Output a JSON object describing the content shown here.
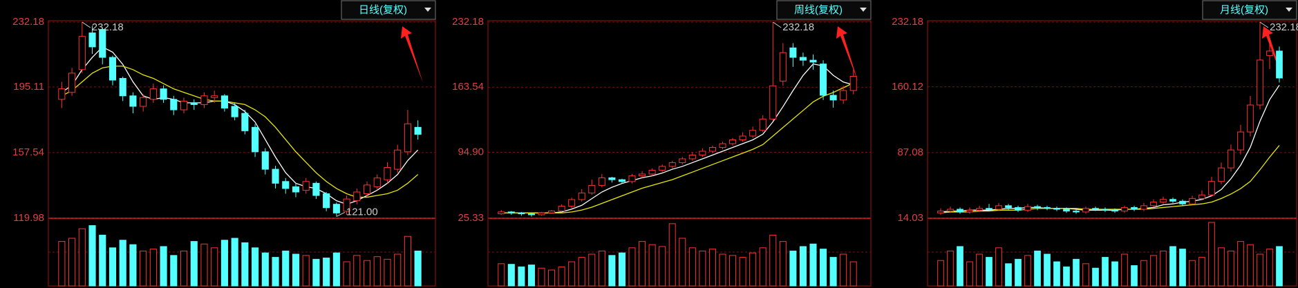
{
  "chart_data": [
    {
      "type": "candlestick",
      "title": "日线(复权)",
      "ylim": [
        119.98,
        232.18
      ],
      "yticks": [
        119.98,
        157.54,
        195.11,
        232.18
      ],
      "grid": true,
      "up_color": "#ff3232",
      "down_color": "#54ffff",
      "high_label": {
        "value": 232.18,
        "label": "232.18"
      },
      "low_label": {
        "value": 121,
        "label": "121.00"
      },
      "open": [
        188,
        192,
        205,
        226,
        228,
        212,
        200,
        190,
        184,
        188,
        194,
        188,
        182,
        186,
        185,
        189,
        190,
        184,
        180,
        172,
        158,
        148,
        141,
        138,
        136,
        140,
        134,
        128,
        124,
        130,
        134,
        138,
        142,
        148,
        158,
        172
      ],
      "high": [
        198,
        206,
        232.18,
        230,
        229,
        213,
        201,
        192,
        191,
        197,
        196,
        190,
        189,
        188,
        192,
        193,
        191,
        186,
        182,
        174,
        160,
        150,
        143,
        140,
        143,
        141,
        135,
        129,
        133,
        137,
        141,
        145,
        152,
        162,
        182,
        176
      ],
      "low": [
        183,
        190,
        203,
        214,
        208,
        196,
        187,
        180,
        181,
        186,
        186,
        179,
        180,
        182,
        183,
        186,
        181,
        176,
        168,
        155,
        145,
        137,
        134,
        132,
        134,
        131,
        124,
        121,
        122,
        128,
        132,
        136,
        140,
        146,
        156,
        165
      ],
      "close": [
        194,
        203,
        224,
        218,
        212,
        199,
        190,
        184,
        189,
        194,
        188,
        182,
        187,
        185,
        190,
        190,
        183,
        178,
        170,
        158,
        148,
        140,
        137,
        135,
        141,
        133,
        126,
        123,
        131,
        135,
        139,
        143,
        149,
        159,
        174,
        168
      ],
      "ma_lines": [
        {
          "color": "#ffffff",
          "values": [
            192,
            196,
            205,
            212,
            218,
            215,
            208,
            198,
            190,
            188,
            189,
            188,
            186,
            186,
            186,
            187,
            187,
            185,
            181,
            175,
            165,
            155,
            146,
            140,
            138,
            137,
            134,
            130,
            128,
            130,
            133,
            136,
            140,
            145,
            153,
            159
          ]
        },
        {
          "color": "#e8e800",
          "values": [
            190,
            193,
            198,
            203,
            206,
            207,
            207,
            205,
            202,
            200,
            197,
            194,
            192,
            190,
            188,
            187,
            187,
            186,
            185,
            182,
            178,
            172,
            165,
            158,
            152,
            146,
            141,
            137,
            134,
            132,
            132,
            133,
            134,
            136,
            140,
            145
          ]
        }
      ],
      "volume": {
        "ylim": [
          0,
          100
        ],
        "values": [
          70,
          75,
          90,
          95,
          80,
          60,
          72,
          65,
          55,
          58,
          62,
          48,
          55,
          70,
          66,
          60,
          72,
          75,
          68,
          60,
          52,
          45,
          55,
          50,
          48,
          42,
          44,
          52,
          38,
          48,
          40,
          46,
          42,
          50,
          78,
          55
        ]
      }
    },
    {
      "type": "candlestick",
      "title": "周线(复权)",
      "ylim": [
        25.33,
        232.18
      ],
      "yticks": [
        25.33,
        {
          "value": 94.9,
          "label": "94.90"
        },
        163.54,
        232.18
      ],
      "grid": true,
      "up_color": "#ff3232",
      "down_color": "#54ffff",
      "high_label": {
        "value": 232.18,
        "label": "232.18"
      },
      "open": [
        30,
        32,
        31,
        30,
        29,
        31,
        33,
        38,
        45,
        52,
        60,
        68,
        66,
        64,
        70,
        72,
        76,
        80,
        84,
        88,
        92,
        96,
        100,
        104,
        108,
        112,
        118,
        130,
        170,
        205,
        195,
        192,
        188,
        155,
        150,
        160
      ],
      "high": [
        34,
        33,
        32,
        31,
        32,
        34,
        40,
        47,
        56,
        66,
        72,
        69,
        67,
        72,
        75,
        78,
        82,
        86,
        90,
        95,
        99,
        102,
        106,
        110,
        116,
        122,
        134,
        232.18,
        210,
        210,
        200,
        198,
        192,
        160,
        165,
        182
      ],
      "low": [
        29,
        29,
        28,
        27,
        28,
        30,
        32,
        36,
        43,
        50,
        58,
        63,
        62,
        62,
        68,
        70,
        74,
        78,
        82,
        86,
        90,
        94,
        98,
        102,
        106,
        110,
        116,
        128,
        165,
        185,
        186,
        182,
        150,
        142,
        146,
        156
      ],
      "close": [
        32,
        31,
        30,
        29,
        31,
        33,
        38,
        45,
        52,
        60,
        68,
        66,
        64,
        70,
        72,
        76,
        80,
        84,
        88,
        92,
        96,
        100,
        104,
        108,
        112,
        118,
        130,
        165,
        200,
        195,
        192,
        190,
        155,
        150,
        160,
        175
      ],
      "ma_lines": [
        {
          "color": "#ffffff",
          "values": [
            31,
            31,
            31,
            31,
            31,
            31,
            32,
            35,
            39,
            46,
            53,
            58,
            62,
            65,
            68,
            70,
            73,
            77,
            80,
            84,
            88,
            92,
            96,
            100,
            104,
            108,
            114,
            127,
            143,
            160,
            176,
            188,
            186,
            176,
            169,
            166
          ]
        },
        {
          "color": "#e8e800",
          "values": [
            31,
            31,
            31,
            31,
            31,
            31,
            31,
            32,
            34,
            37,
            41,
            45,
            49,
            53,
            57,
            60,
            63,
            66,
            70,
            74,
            78,
            82,
            86,
            90,
            94,
            98,
            103,
            112,
            121,
            130,
            139,
            148,
            154,
            158,
            163,
            168
          ]
        }
      ],
      "volume": {
        "ylim": [
          0,
          100
        ],
        "values": [
          35,
          34,
          30,
          33,
          28,
          25,
          30,
          38,
          45,
          50,
          55,
          48,
          52,
          60,
          70,
          65,
          62,
          98,
          75,
          60,
          55,
          58,
          50,
          48,
          45,
          52,
          60,
          80,
          70,
          55,
          62,
          66,
          58,
          45,
          50,
          38
        ]
      }
    },
    {
      "type": "candlestick",
      "title": "月线(复权)",
      "ylim": [
        14.03,
        232.18
      ],
      "yticks": [
        14.03,
        87.08,
        160.12,
        232.18
      ],
      "grid": true,
      "up_color": "#ff3232",
      "down_color": "#54ffff",
      "high_label": {
        "value": 232.18,
        "label": "232.18"
      },
      "open": [
        20,
        22,
        24,
        21,
        23,
        25,
        24,
        28,
        26,
        23,
        27,
        26,
        25,
        24,
        22,
        21,
        25,
        24,
        23,
        22,
        26,
        24,
        28,
        32,
        35,
        33,
        30,
        36,
        40,
        55,
        70,
        90,
        110,
        140,
        195,
        200
      ],
      "high": [
        25,
        27,
        26,
        26,
        28,
        30,
        31,
        30,
        28,
        30,
        29,
        28,
        27,
        26,
        24,
        27,
        27,
        26,
        25,
        28,
        28,
        31,
        35,
        38,
        37,
        35,
        39,
        45,
        60,
        76,
        96,
        118,
        150,
        232.18,
        215,
        205
      ],
      "low": [
        18,
        20,
        19,
        19,
        21,
        22,
        22,
        23,
        21,
        21,
        23,
        23,
        22,
        20,
        19,
        19,
        22,
        21,
        20,
        20,
        22,
        22,
        26,
        30,
        31,
        28,
        29,
        34,
        38,
        52,
        66,
        85,
        105,
        135,
        180,
        165
      ],
      "close": [
        22,
        24,
        21,
        23,
        25,
        24,
        28,
        26,
        23,
        27,
        26,
        25,
        24,
        22,
        21,
        25,
        24,
        23,
        22,
        26,
        24,
        28,
        32,
        35,
        33,
        30,
        36,
        40,
        55,
        70,
        90,
        110,
        140,
        190,
        200,
        170
      ],
      "ma_lines": [
        {
          "color": "#ffffff",
          "values": [
            21,
            22,
            22,
            23,
            23,
            23,
            24,
            25,
            25,
            26,
            26,
            25,
            25,
            25,
            24,
            23,
            23,
            23,
            23,
            24,
            24,
            25,
            26,
            29,
            30,
            32,
            33,
            35,
            39,
            46,
            58,
            73,
            93,
            122,
            146,
            162
          ]
        },
        {
          "color": "#e8e800",
          "values": [
            20,
            21,
            21,
            21,
            22,
            22,
            23,
            23,
            23,
            24,
            25,
            25,
            25,
            25,
            25,
            24,
            24,
            24,
            24,
            24,
            24,
            24,
            25,
            26,
            27,
            28,
            29,
            30,
            32,
            36,
            41,
            47,
            55,
            68,
            82,
            95
          ]
        }
      ],
      "volume": {
        "ylim": [
          0,
          100
        ],
        "values": [
          40,
          55,
          62,
          38,
          50,
          45,
          60,
          35,
          42,
          48,
          55,
          50,
          38,
          30,
          42,
          35,
          28,
          45,
          38,
          50,
          32,
          40,
          48,
          55,
          62,
          58,
          40,
          45,
          100,
          60,
          55,
          70,
          65,
          50,
          58,
          62
        ]
      }
    }
  ]
}
